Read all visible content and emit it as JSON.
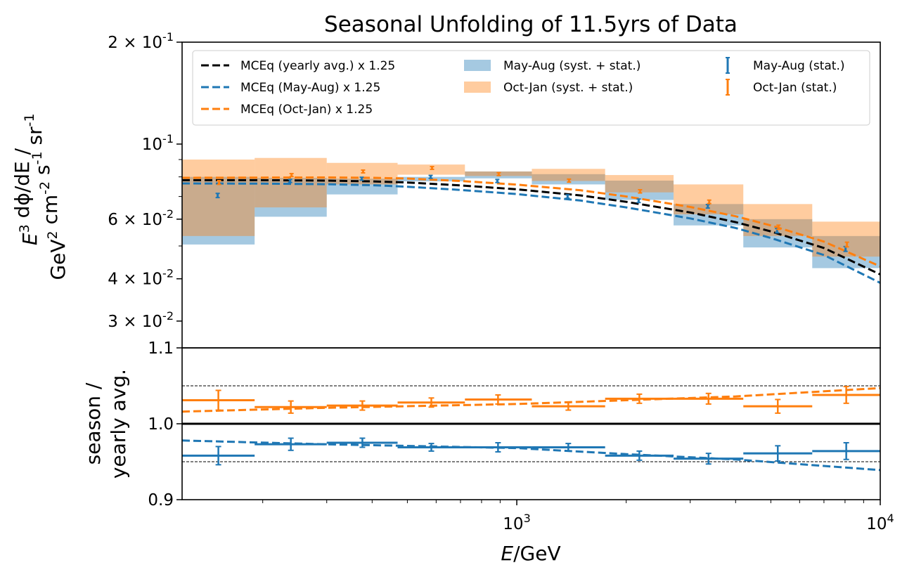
{
  "chart_data": {
    "type": "line",
    "title": "Seasonal Unfolding of 11.5yrs of Data",
    "xlabel": "E/GeV",
    "xscale": "log",
    "xlim": [
      120,
      10000
    ],
    "x_ticks": [
      {
        "value": 1000,
        "label": "10^3"
      },
      {
        "value": 10000,
        "label": "10^4"
      }
    ],
    "bin_edges": [
      120,
      190,
      300,
      470,
      720,
      1100,
      1750,
      2700,
      4200,
      6500,
      10000
    ],
    "bin_centers": [
      151,
      239,
      376,
      582,
      888,
      1386,
      2174,
      3369,
      5225,
      8062
    ],
    "top_panel": {
      "ylabel_line1": "E^3 dϕ/dE /",
      "ylabel_line2": "GeV^2 cm^-2 s^-1 sr^-1",
      "yscale": "log",
      "ylim": [
        0.025,
        0.2
      ],
      "y_ticks": [
        {
          "value": 0.2,
          "label": "2 × 10^-1"
        },
        {
          "value": 0.1,
          "label": "10^-1"
        },
        {
          "value": 0.06,
          "label": "6 × 10^-2"
        },
        {
          "value": 0.04,
          "label": "4 × 10^-2"
        },
        {
          "value": 0.03,
          "label": "3 × 10^-2"
        }
      ],
      "legend_position": "top",
      "series": [
        {
          "name": "MCEq (yearly avg.) x 1.25",
          "kind": "dashed-line",
          "color": "#000000",
          "x": [
            120,
            200,
            300,
            400,
            500,
            700,
            1000,
            1500,
            2000,
            3000,
            4000,
            5000,
            7000,
            10000
          ],
          "values": [
            0.0782,
            0.0782,
            0.078,
            0.0776,
            0.077,
            0.0755,
            0.0735,
            0.0705,
            0.0675,
            0.0628,
            0.0588,
            0.0552,
            0.0493,
            0.0412
          ]
        },
        {
          "name": "MCEq (May-Aug) x 1.25",
          "kind": "dashed-line",
          "color": "#1f77b4",
          "x": [
            120,
            200,
            300,
            400,
            500,
            700,
            1000,
            1500,
            2000,
            3000,
            4000,
            5000,
            7000,
            10000
          ],
          "values": [
            0.0765,
            0.0764,
            0.0761,
            0.0756,
            0.0748,
            0.0732,
            0.0712,
            0.0681,
            0.065,
            0.0603,
            0.0565,
            0.0528,
            0.047,
            0.0389
          ]
        },
        {
          "name": "MCEq (Oct-Jan) x 1.25",
          "kind": "dashed-line",
          "color": "#ff7f0e",
          "x": [
            120,
            200,
            300,
            400,
            500,
            700,
            1000,
            1500,
            2000,
            3000,
            4000,
            5000,
            7000,
            10000
          ],
          "values": [
            0.0795,
            0.0796,
            0.0797,
            0.0795,
            0.0791,
            0.0778,
            0.0759,
            0.073,
            0.07,
            0.0652,
            0.0612,
            0.0575,
            0.0515,
            0.0435
          ]
        },
        {
          "name": "May-Aug (syst. + stat.)",
          "kind": "band",
          "color": "#1f77b4",
          "opacity": 0.4,
          "low": [
            0.0505,
            0.061,
            0.071,
            0.0776,
            0.0792,
            0.076,
            0.0684,
            0.0575,
            0.0495,
            0.043
          ],
          "high": [
            0.08,
            0.0795,
            0.079,
            0.08,
            0.083,
            0.0815,
            0.078,
            0.0665,
            0.06,
            0.0535
          ]
        },
        {
          "name": "Oct-Jan (syst. + stat.)",
          "kind": "band",
          "color": "#ff7f0e",
          "opacity": 0.4,
          "low": [
            0.0535,
            0.065,
            0.076,
            0.0812,
            0.0805,
            0.0778,
            0.072,
            0.062,
            0.0535,
            0.0465
          ],
          "high": [
            0.09,
            0.091,
            0.088,
            0.087,
            0.083,
            0.0845,
            0.081,
            0.076,
            0.0665,
            0.059
          ]
        },
        {
          "name": "May-Aug (stat.)",
          "kind": "errorbar",
          "color": "#1f77b4",
          "values": [
            0.0705,
            0.0778,
            0.079,
            0.08,
            0.0778,
            0.07,
            0.068,
            0.0655,
            0.0555,
            0.049
          ],
          "err": [
            0.001,
            0.0008,
            0.0008,
            0.0008,
            0.0008,
            0.0008,
            0.0008,
            0.0008,
            0.0008,
            0.0008
          ]
        },
        {
          "name": "Oct-Jan (stat.)",
          "kind": "errorbar",
          "color": "#ff7f0e",
          "values": [
            0.077,
            0.081,
            0.083,
            0.085,
            0.0815,
            0.078,
            0.0725,
            0.0675,
            0.0568,
            0.0505
          ],
          "err": [
            0.001,
            0.0008,
            0.0008,
            0.0008,
            0.0008,
            0.0008,
            0.0008,
            0.0008,
            0.0008,
            0.0008
          ]
        }
      ]
    },
    "bottom_panel": {
      "ylabel_line1": "season /",
      "ylabel_line2": "yearly avg.",
      "ylim": [
        0.9,
        1.1
      ],
      "y_ticks": [
        {
          "value": 1.1,
          "label": "1.1"
        },
        {
          "value": 1.0,
          "label": "1.0"
        },
        {
          "value": 0.9,
          "label": "0.9"
        }
      ],
      "reference_lines": [
        1.05,
        1.0,
        0.95
      ],
      "series": [
        {
          "name": "Oct-Jan ratio",
          "color": "#ff7f0e",
          "values": [
            1.031,
            1.022,
            1.024,
            1.028,
            1.032,
            1.023,
            1.033,
            1.033,
            1.023,
            1.038
          ],
          "err": [
            0.013,
            0.008,
            0.006,
            0.006,
            0.006,
            0.005,
            0.006,
            0.007,
            0.009,
            0.011
          ],
          "model_x": [
            120,
            300,
            1000,
            2000,
            4000,
            10000
          ],
          "model": [
            1.016,
            1.021,
            1.026,
            1.031,
            1.036,
            1.047
          ]
        },
        {
          "name": "May-Aug ratio",
          "color": "#1f77b4",
          "values": [
            0.958,
            0.973,
            0.975,
            0.969,
            0.969,
            0.969,
            0.958,
            0.954,
            0.961,
            0.964
          ],
          "err": [
            0.012,
            0.008,
            0.006,
            0.005,
            0.006,
            0.005,
            0.006,
            0.007,
            0.01,
            0.011
          ],
          "model_x": [
            120,
            300,
            1000,
            2000,
            4000,
            10000
          ],
          "model": [
            0.978,
            0.973,
            0.968,
            0.96,
            0.953,
            0.939
          ]
        }
      ]
    }
  }
}
